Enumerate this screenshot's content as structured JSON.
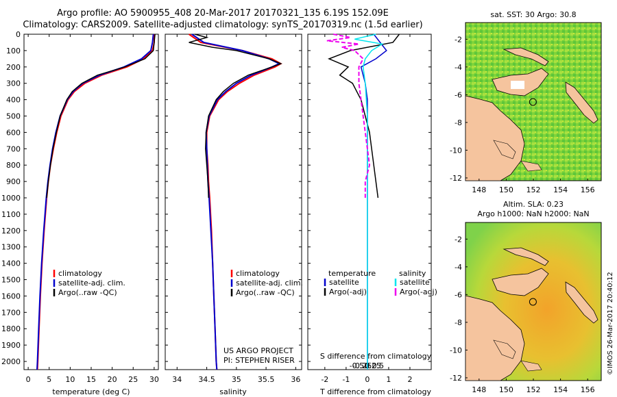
{
  "header": {
    "line1": "Argo profile: AO 5900955_408 20-Mar-2017 20170321_135 6.19S 152.09E",
    "line2": "Climatology: CARS2009. Satellite-adjusted climatology: synTS_20170319.nc (1.5d earlier)"
  },
  "project": {
    "line1": "US ARGO PROJECT",
    "line2": "PI: STEPHEN RISER"
  },
  "footer_stamp": "©IMOS 26-Mar-2017 20:40:12",
  "colors": {
    "climatology": "#ff0000",
    "satellite": "#0000cc",
    "argo": "#000000",
    "salinity_sat": "#00e5ee",
    "salinity_argo": "#ee00ee",
    "land": "#f5c49e"
  },
  "chart_data": [
    {
      "type": "line",
      "id": "temperature",
      "xlabel": "temperature (deg C)",
      "xlim": [
        -1,
        31
      ],
      "ylim": [
        2050,
        0
      ],
      "xticks": [
        0,
        5,
        10,
        15,
        20,
        25,
        30
      ],
      "yticks": [
        0,
        100,
        200,
        300,
        400,
        500,
        600,
        700,
        800,
        900,
        1000,
        1100,
        1200,
        1300,
        1400,
        1500,
        1600,
        1700,
        1800,
        1900,
        2000
      ],
      "legend": [
        "climatology",
        "satellite-adj. clim.",
        "Argo(..raw -QC)"
      ],
      "series": [
        {
          "name": "climatology",
          "depth": [
            0,
            50,
            100,
            150,
            200,
            250,
            300,
            350,
            400,
            500,
            600,
            700,
            800,
            900,
            1000,
            1200,
            1400,
            1600,
            1800,
            2000,
            2050
          ],
          "values": [
            30,
            30,
            29.6,
            27.5,
            23.5,
            17.5,
            13.5,
            11,
            9.5,
            7.8,
            6.8,
            6,
            5.3,
            4.8,
            4.4,
            3.8,
            3.3,
            2.9,
            2.6,
            2.3,
            2.2
          ]
        },
        {
          "name": "satellite-adj. clim.",
          "depth": [
            0,
            50,
            100,
            150,
            200,
            250,
            300,
            350,
            400,
            500,
            600,
            700,
            800,
            900,
            1000,
            1200,
            1400,
            1600,
            1800,
            2000,
            2050
          ],
          "values": [
            29.8,
            29.6,
            29.2,
            27,
            22.8,
            17,
            13,
            10.7,
            9.3,
            7.6,
            6.6,
            5.8,
            5.2,
            4.7,
            4.3,
            3.7,
            3.2,
            2.8,
            2.5,
            2.2,
            2.1
          ]
        },
        {
          "name": "Argo(..raw -QC)",
          "depth": [
            0,
            50,
            100,
            150,
            200,
            250,
            300,
            350,
            400,
            500,
            600,
            700,
            800,
            900,
            1000
          ],
          "values": [
            30.2,
            30,
            29.8,
            27.8,
            23,
            16.5,
            12.8,
            10.5,
            9.2,
            7.6,
            6.7,
            5.9,
            5.3,
            4.8,
            4.4
          ]
        }
      ]
    },
    {
      "type": "line",
      "id": "salinity",
      "xlabel": "salinity",
      "xlim": [
        33.8,
        36.1
      ],
      "ylim": [
        2050,
        0
      ],
      "xticks": [
        34,
        34.5,
        35,
        35.5,
        36
      ],
      "legend": [
        "climatology",
        "satellite-adj. clim.",
        "Argo(..raw -QC)"
      ],
      "series": [
        {
          "name": "climatology",
          "depth": [
            0,
            50,
            100,
            150,
            180,
            200,
            250,
            300,
            350,
            400,
            500,
            600,
            700,
            800,
            900,
            1000,
            1200,
            1400,
            1600,
            1800,
            2000,
            2050
          ],
          "values": [
            34.2,
            34.4,
            35.1,
            35.6,
            35.75,
            35.65,
            35.3,
            35.05,
            34.85,
            34.7,
            34.55,
            34.5,
            34.5,
            34.52,
            34.53,
            34.55,
            34.58,
            34.6,
            34.62,
            34.64,
            34.66,
            34.67
          ]
        },
        {
          "name": "satellite-adj. clim.",
          "depth": [
            0,
            50,
            100,
            150,
            180,
            200,
            250,
            300,
            350,
            400,
            500,
            600,
            700,
            800,
            900,
            1000,
            1200,
            1400,
            1600,
            1800,
            2000,
            2050
          ],
          "values": [
            34.25,
            34.45,
            35.1,
            35.55,
            35.72,
            35.6,
            35.25,
            35.0,
            34.82,
            34.68,
            34.54,
            34.49,
            34.5,
            34.51,
            34.52,
            34.54,
            34.57,
            34.6,
            34.62,
            34.64,
            34.66,
            34.67
          ]
        },
        {
          "name": "Argo(..raw -QC)",
          "depth": [
            0,
            20,
            50,
            80,
            100,
            150,
            180,
            200,
            250,
            300,
            350,
            400,
            500,
            600,
            700,
            800,
            900,
            1000
          ],
          "values": [
            34.3,
            34.5,
            34.2,
            34.6,
            35.0,
            35.55,
            35.75,
            35.6,
            35.2,
            34.95,
            34.78,
            34.66,
            34.53,
            34.49,
            34.48,
            34.5,
            34.52,
            34.53
          ]
        }
      ]
    },
    {
      "type": "line",
      "id": "differences",
      "xlabel": "T difference from climatology",
      "xlabel_top": "S difference from climatology",
      "xlim": [
        -2.8,
        3.0
      ],
      "ylim": [
        2050,
        0
      ],
      "xticks": [
        -2,
        -1,
        0,
        1,
        2
      ],
      "xticks_s": [
        -0.5,
        -0.25,
        0,
        0.25,
        0.5
      ],
      "xticks_s_labels": [
        "-0.5",
        "-0.25",
        "0",
        "0.25",
        "0.5"
      ],
      "legend_titles": [
        "temperature",
        "salinity"
      ],
      "legend": [
        "satellite",
        "Argo(-adj)",
        "satellite",
        "Argo(-adj)"
      ],
      "series": [
        {
          "name": "temperature satellite",
          "depth": [
            0,
            50,
            100,
            150,
            200,
            250,
            300,
            400,
            500,
            700,
            1000,
            1500,
            2000,
            2050
          ],
          "values": [
            0.3,
            0.6,
            0.9,
            0.4,
            -0.3,
            -0.2,
            -0.1,
            0,
            0,
            0,
            0,
            0,
            0,
            0
          ]
        },
        {
          "name": "temperature Argo(-adj)",
          "depth": [
            0,
            50,
            100,
            150,
            200,
            250,
            300,
            350,
            400,
            500,
            600,
            700,
            800,
            900,
            1000
          ],
          "values": [
            1.5,
            1.2,
            -0.8,
            -1.8,
            -0.9,
            -1.3,
            -0.7,
            -0.5,
            -0.3,
            -0.1,
            0.1,
            0.2,
            0.3,
            0.4,
            0.5
          ]
        },
        {
          "name": "salinity satellite",
          "depth": [
            0,
            30,
            60,
            100,
            150,
            200,
            300,
            500,
            800,
            1200,
            1600,
            2000,
            2050
          ],
          "values": [
            0.4,
            -0.6,
            0.7,
            0.2,
            -0.1,
            -0.2,
            -0.1,
            0,
            0,
            0,
            0,
            0,
            0
          ]
        },
        {
          "name": "salinity Argo(-adj)",
          "depth": [
            0,
            20,
            40,
            60,
            80,
            100,
            150,
            200,
            300,
            400,
            500,
            600,
            700,
            800,
            900,
            1000
          ],
          "values": [
            -1.6,
            -0.8,
            -1.9,
            -0.4,
            -1.2,
            -0.6,
            -0.2,
            -0.4,
            -0.4,
            -0.3,
            -0.2,
            -0.1,
            0,
            0.1,
            -0.1,
            -0.1
          ]
        }
      ]
    },
    {
      "type": "heatmap",
      "id": "sst_map",
      "title": "sat. SST: 30 Argo: 30.8",
      "xlim": [
        147,
        157
      ],
      "ylim": [
        -12.2,
        -0.8
      ],
      "xticks": [
        148,
        150,
        152,
        154,
        156
      ],
      "yticks": [
        -2,
        -4,
        -6,
        -8,
        -10,
        -12
      ],
      "marker": {
        "lon": 152.09,
        "lat": -6.19
      }
    },
    {
      "type": "heatmap",
      "id": "sla_map",
      "title_line1": "Altim. SLA: 0.23",
      "title_line2": "Argo h1000: NaN h2000: NaN",
      "xlim": [
        147,
        157
      ],
      "ylim": [
        -12.2,
        -0.8
      ],
      "xticks": [
        148,
        150,
        152,
        154,
        156
      ],
      "yticks": [
        -2,
        -4,
        -6,
        -8,
        -10,
        -12
      ],
      "marker": {
        "lon": 152.09,
        "lat": -6.19
      }
    }
  ]
}
